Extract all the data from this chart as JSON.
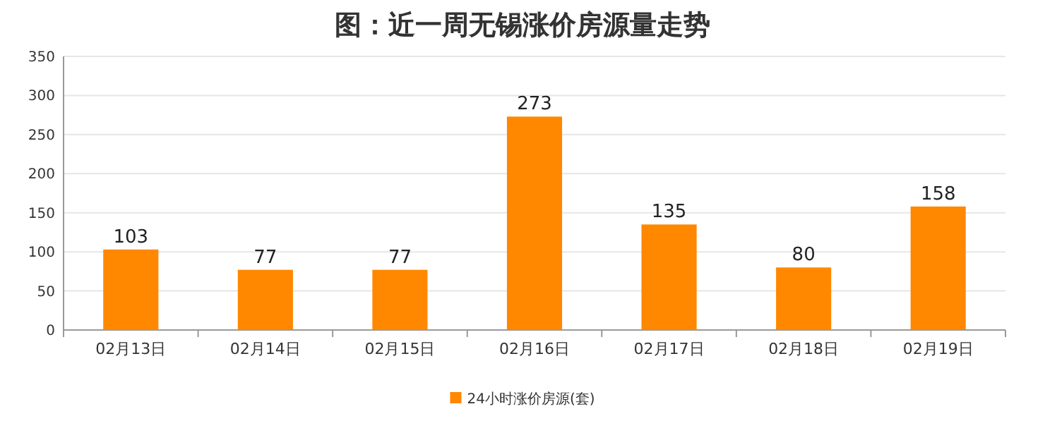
{
  "chart_data": {
    "type": "bar",
    "title": "图：近一周无锡涨价房源量走势",
    "categories": [
      "02月13日",
      "02月14日",
      "02月15日",
      "02月16日",
      "02月17日",
      "02月18日",
      "02月19日"
    ],
    "series": [
      {
        "name": "24小时涨价房源(套)",
        "color": "#ff8800",
        "values": [
          103,
          77,
          77,
          273,
          135,
          80,
          158
        ]
      }
    ],
    "ylim": [
      0,
      350
    ],
    "yticks": [
      0,
      50,
      100,
      150,
      200,
      250,
      300,
      350
    ],
    "grid": "y",
    "data_labels": true,
    "legend": "bottom"
  }
}
